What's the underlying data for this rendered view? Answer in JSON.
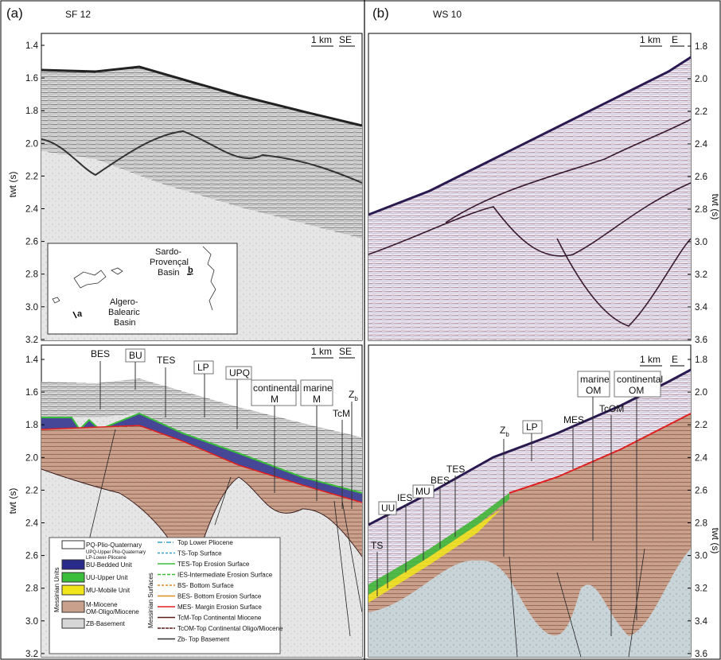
{
  "panels": [
    {
      "label": "(a)",
      "profile": "SF 12",
      "scale": "1 km",
      "direction": "SE",
      "y_axis_label": "twt (s)",
      "top_ticks": [
        "1.4",
        "1.6",
        "1.8",
        "2.0",
        "2.2",
        "2.4",
        "2.6",
        "2.8",
        "3.0",
        "3.2"
      ],
      "bottom_ticks": [
        "1.4",
        "1.6",
        "1.8",
        "2.0",
        "2.2",
        "2.4",
        "2.6",
        "2.8",
        "3.0",
        "3.2"
      ],
      "inset": {
        "basin_1": [
          "Sardo-",
          "Provençal",
          "Basin"
        ],
        "basin_2": [
          "Algero-",
          "Balearic",
          "Basin"
        ],
        "marker_a": "a",
        "marker_b": "b"
      },
      "annotations": {
        "BES": "BES",
        "BU": "BU",
        "TES": "TES",
        "LP": "LP",
        "UPQ": "UPQ",
        "continental_M": [
          "continental",
          "M"
        ],
        "marine_M": [
          "marine",
          "M"
        ],
        "TcM": "TcM",
        "Zb": {
          "main": "Z",
          "sub": "b"
        }
      },
      "legend": {
        "units_title": "Messinian Units",
        "surfaces_title": "Messinian Surfaces",
        "pq": "PQ-Plio-Quaternary",
        "pq_sub": [
          "UPQ-Upper Plio-Quaternary",
          "LP-Lower-Pliocene"
        ],
        "units": [
          "BU-Bedded Unit",
          "UU-Upper Unit",
          "MU-Mobile Unit"
        ],
        "miocene": [
          "M-Miocene",
          "OM-Oligo/Miocene"
        ],
        "basement": "ZB-Basement",
        "surfaces": [
          "Top Lower Pliocene",
          "TS-Top Surface",
          "TES-Top Erosion Surface",
          "IES-Intermediate Erosion Surface",
          "BS- Bottom Surface",
          "BES- Bottom Erosion Surface",
          "MES- Margin Erosion Surface",
          "TcM-Top Continental Miocene",
          "TcOM-Top Continental Oligo/Miocene",
          "Zb- Top Basement"
        ]
      }
    },
    {
      "label": "(b)",
      "profile": "WS 10",
      "scale": "1 km",
      "direction": "E",
      "y_axis_label_top": "twt (s)",
      "y_axis_label_bottom": "twt (s)",
      "top_ticks": [
        "1.8",
        "2.0",
        "2.2",
        "2.4",
        "2.6",
        "2.8",
        "3.0",
        "3.2",
        "3.4",
        "3.6"
      ],
      "bottom_ticks": [
        "1.8",
        "2.0",
        "2.2",
        "2.4",
        "2.6",
        "2.8",
        "3.0",
        "3.2",
        "3.4",
        "3.6"
      ],
      "annotations": {
        "TS": "TS",
        "UU": "UU",
        "IES": "IES",
        "MU": "MU",
        "BES": "BES",
        "TES": "TES",
        "Zb": {
          "main": "Z",
          "sub": "b"
        },
        "LP": "LP",
        "MES": "MES",
        "marine_OM": [
          "marine",
          "OM"
        ],
        "TcOM": "TcOM",
        "continental_OM": [
          "continental",
          "OM"
        ]
      }
    }
  ]
}
